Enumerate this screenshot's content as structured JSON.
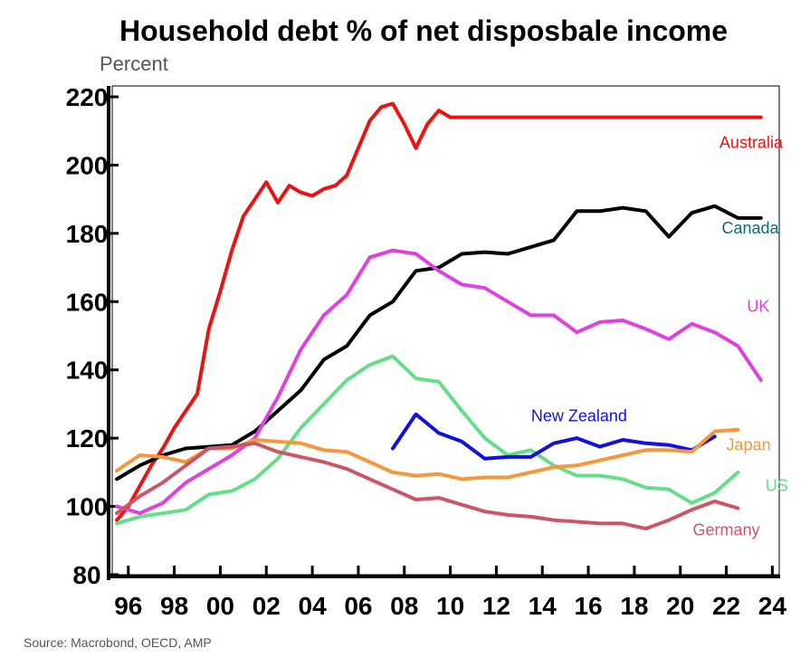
{
  "chart_data": {
    "type": "line",
    "title": "Household debt % of net disposbale income",
    "ylabel": "Percent",
    "xlabel": "",
    "ylim": [
      80,
      220
    ],
    "yticks": [
      80,
      100,
      120,
      140,
      160,
      180,
      200,
      220
    ],
    "xlim": [
      1995.3,
      2024.3
    ],
    "xticks": [
      1996,
      1998,
      2000,
      2002,
      2004,
      2006,
      2008,
      2010,
      2012,
      2014,
      2016,
      2018,
      2020,
      2022,
      2024
    ],
    "xtick_labels": [
      "96",
      "98",
      "00",
      "02",
      "04",
      "06",
      "08",
      "10",
      "12",
      "14",
      "16",
      "18",
      "20",
      "22",
      "24"
    ],
    "grid": false,
    "series": [
      {
        "name": "Australia",
        "color": "#ee1111",
        "x": [
          1995.5,
          1996.0,
          1996.5,
          1997.0,
          1997.5,
          1998.0,
          1998.5,
          1999.0,
          1999.5,
          2000.0,
          2000.5,
          2001.0,
          2001.5,
          2002.0,
          2002.5,
          2003.0,
          2003.5,
          2004.0,
          2004.5,
          2005.0,
          2005.5,
          2006.0,
          2006.5,
          2007.0,
          2007.5,
          2008.0,
          2008.5,
          2009.0,
          2009.5,
          2010.0,
          2010.5,
          2011.0,
          2011.5,
          2012.0,
          2012.5,
          2013.0,
          2013.5,
          2014.0,
          2014.5,
          2015.0,
          2015.5,
          2016.0,
          2016.5,
          2017.0,
          2017.5,
          2018.0,
          2018.5,
          2019.0,
          2019.5,
          2020.0,
          2020.5,
          2021.0,
          2021.5,
          2022.0,
          2022.5,
          2023.0,
          2023.5
        ],
        "values": [
          96,
          100,
          106,
          112,
          117,
          123,
          128,
          133,
          152,
          163,
          175,
          185,
          190,
          195,
          189,
          194,
          192,
          191,
          193,
          194,
          197,
          205,
          213,
          217,
          218,
          212,
          205,
          212,
          216,
          214,
          214,
          214,
          214,
          214,
          214,
          214,
          214,
          214,
          214,
          214,
          214,
          214,
          214,
          214,
          214,
          214,
          214,
          214,
          214,
          214,
          214,
          214,
          214,
          214,
          214,
          214,
          214
        ]
      },
      {
        "name": "Canada",
        "color": "#000000",
        "x": [
          1995.5,
          1996.5,
          1997.5,
          1998.5,
          1999.5,
          2000.5,
          2001.5,
          2002.5,
          2003.5,
          2004.5,
          2005.5,
          2006.5,
          2007.5,
          2008.5,
          2009.5,
          2010.5,
          2011.5,
          2012.5,
          2013.5,
          2014.5,
          2015.5,
          2016.5,
          2017.5,
          2018.5,
          2019.5,
          2020.5,
          2021.5,
          2022.5,
          2023.5
        ],
        "values": [
          108,
          112,
          115,
          117,
          117.5,
          118,
          122,
          128,
          134,
          143,
          147,
          156,
          160,
          169,
          170,
          174,
          174.5,
          174,
          176,
          178,
          186.5,
          186.5,
          187.5,
          186.5,
          179,
          186,
          188,
          184.5,
          184.5
        ]
      },
      {
        "name": "UK",
        "color": "#e040e0",
        "x": [
          1995.5,
          1996.5,
          1997.5,
          1998.5,
          1999.5,
          2000.5,
          2001.5,
          2002.5,
          2003.5,
          2004.5,
          2005.5,
          2006.5,
          2007.5,
          2008.5,
          2009.5,
          2010.5,
          2011.5,
          2012.5,
          2013.5,
          2014.5,
          2015.5,
          2016.5,
          2017.5,
          2018.5,
          2019.5,
          2020.5,
          2021.5,
          2022.5,
          2023.5
        ],
        "values": [
          100,
          98,
          101,
          107,
          111,
          115,
          120,
          132,
          146,
          156,
          162,
          173,
          175,
          174,
          169,
          165,
          164,
          160,
          156,
          156,
          151,
          154,
          154.5,
          152,
          149,
          153.5,
          151,
          147,
          137
        ]
      },
      {
        "name": "US",
        "color": "#66dd88",
        "x": [
          1995.5,
          1996.5,
          1997.5,
          1998.5,
          1999.5,
          2000.5,
          2001.5,
          2002.5,
          2003.5,
          2004.5,
          2005.5,
          2006.5,
          2007.5,
          2008.5,
          2009.5,
          2010.5,
          2011.5,
          2012.5,
          2013.5,
          2014.5,
          2015.5,
          2016.5,
          2017.5,
          2018.5,
          2019.5,
          2020.5,
          2021.5,
          2022.5
        ],
        "values": [
          95,
          97,
          98,
          99,
          103.5,
          104.5,
          108,
          114,
          123,
          130,
          137,
          141.5,
          144,
          137.5,
          136.5,
          128,
          120,
          115,
          116.5,
          112,
          109,
          109,
          108,
          105.5,
          105,
          101,
          104,
          110
        ]
      },
      {
        "name": "New Zealand",
        "color": "#1111dd",
        "x": [
          2007.5,
          2008.5,
          2009.5,
          2010.5,
          2011.5,
          2012.5,
          2013.5,
          2014.5,
          2015.5,
          2016.5,
          2017.5,
          2018.5,
          2019.5,
          2020.5,
          2021.5
        ],
        "values": [
          117,
          127,
          121.5,
          119,
          114,
          114.5,
          114.5,
          118.5,
          120,
          117.5,
          119.5,
          118.5,
          118,
          116.5,
          120.5
        ]
      },
      {
        "name": "Japan",
        "color": "#f5973a",
        "x": [
          1995.5,
          1996.5,
          1997.5,
          1998.5,
          1999.5,
          2000.5,
          2001.5,
          2002.5,
          2003.5,
          2004.5,
          2005.5,
          2006.5,
          2007.5,
          2008.5,
          2009.5,
          2010.5,
          2011.5,
          2012.5,
          2013.5,
          2014.5,
          2015.5,
          2016.5,
          2017.5,
          2018.5,
          2019.5,
          2020.5,
          2021.5,
          2022.5
        ],
        "values": [
          110.5,
          115,
          114.5,
          113,
          117,
          117,
          119.5,
          119,
          118.5,
          116.5,
          116,
          113,
          110,
          109,
          109.5,
          108,
          108.5,
          108.5,
          110,
          111.5,
          112,
          113.5,
          115,
          116.5,
          116.5,
          116,
          122,
          122.5
        ]
      },
      {
        "name": "Germany",
        "color": "#cc5566",
        "x": [
          1995.5,
          1996.5,
          1997.5,
          1998.5,
          1999.5,
          2000.5,
          2001.5,
          2002.5,
          2003.5,
          2004.5,
          2005.5,
          2006.5,
          2007.5,
          2008.5,
          2009.5,
          2010.5,
          2011.5,
          2012.5,
          2013.5,
          2014.5,
          2015.5,
          2016.5,
          2017.5,
          2018.5,
          2019.5,
          2020.5,
          2021.5,
          2022.5
        ],
        "values": [
          98,
          103,
          107,
          112,
          117,
          117.5,
          118.5,
          116,
          114.5,
          113,
          111,
          108,
          105,
          102,
          102.5,
          100.5,
          98.5,
          97.5,
          97,
          96,
          95.5,
          95,
          95,
          93.5,
          96,
          99,
          101.5,
          99.5
        ]
      }
    ],
    "series_label_colors": {
      "Australia": "#ee1111",
      "Canada": "#116677",
      "UK": "#e040e0",
      "New Zealand": "#1111dd",
      "Japan": "#f5973a",
      "US": "#66dd88",
      "Germany": "#cc5566"
    }
  },
  "source": "Source: Macrobond, OECD, AMP"
}
